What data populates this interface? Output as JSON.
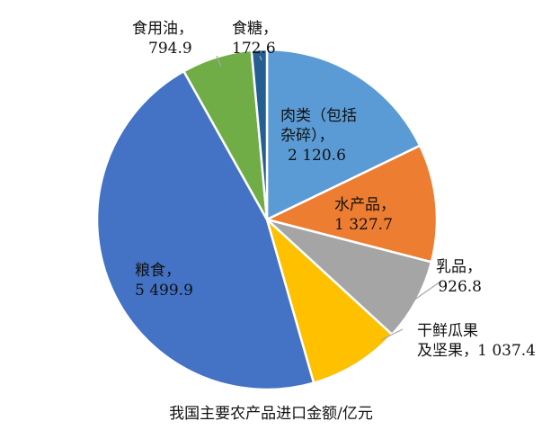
{
  "chart_data": {
    "type": "pie",
    "caption": "我国主要农产品进口金额/亿元",
    "slices": [
      {
        "name_lines": [
          "肉类（包括",
          "杂碎），"
        ],
        "value_label": "2 120.6",
        "value": 2120.6,
        "color": "#5B9BD5"
      },
      {
        "name_lines": [
          "水产品，"
        ],
        "value_label": "1 327.7",
        "value": 1327.7,
        "color": "#ED7D31"
      },
      {
        "name_lines": [
          "乳品，"
        ],
        "value_label": "926.8",
        "value": 926.8,
        "color": "#A5A5A5"
      },
      {
        "name_lines": [
          "干鲜瓜果",
          "及坚果，"
        ],
        "value_label": "1 037.4",
        "value": 1037.4,
        "color": "#FFC000"
      },
      {
        "name_lines": [
          "粮食，"
        ],
        "value_label": "5 499.9",
        "value": 5499.9,
        "color": "#4472C4"
      },
      {
        "name_lines": [
          "食用油，"
        ],
        "value_label": "794.9",
        "value": 794.9,
        "color": "#70AD47"
      },
      {
        "name_lines": [
          "食糖，"
        ],
        "value_label": "172.6",
        "value": 172.6,
        "color": "#255E91"
      }
    ]
  }
}
